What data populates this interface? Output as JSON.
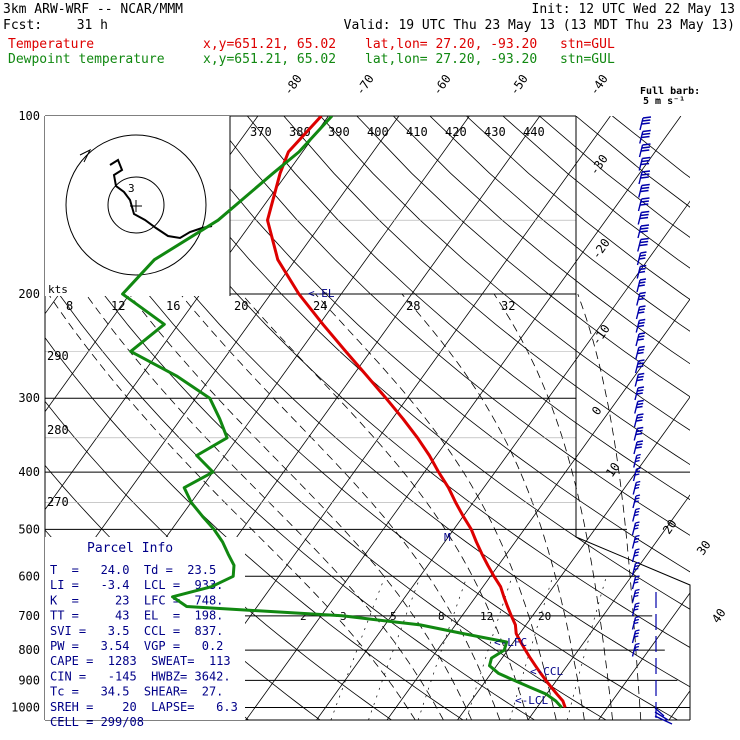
{
  "header": {
    "model_line": "3km ARW-WRF -- NCAR/MMM",
    "init_line": "Init: 12 UTC Wed 22 May 13",
    "fcst_label": "Fcst:",
    "fcst_value": "31 h",
    "valid_line": "Valid: 19 UTC Thu 23 May 13 (13 MDT Thu 23 May 13)",
    "temperature_label": "Temperature",
    "dewpoint_label": "Dewpoint temperature",
    "xy_line": "x,y=651.21, 65.02",
    "latlon_line": "lat,lon= 27.20, -93.20",
    "station_line": "stn=GUL"
  },
  "barb_legend": {
    "line1": "Full barb:",
    "line2": "5 m s⁻¹"
  },
  "hodograph": {
    "kts_label": "kts",
    "ring_labels": [
      "3"
    ],
    "tick_labels": [
      "8",
      "12",
      "16",
      "20",
      "24",
      "28",
      "32"
    ],
    "el_marker": "<-EL"
  },
  "parcel_info": {
    "title": "Parcel Info",
    "rows": [
      "T  =   24.0  Td =  23.5",
      "LI =   -3.4  LCL =  933.",
      "K  =     23  LFC =  748.",
      "TT =     43  EL  =  198.",
      "SVI =   3.5  CCL =  837.",
      "PW =   3.54  VGP =   0.2",
      "CAPE =  1283  SWEAT=  113",
      "CIN =   -145  HWBZ= 3642.",
      "Tc =   34.5  SHEAR=  27.",
      "SREH =    20  LAPSE=   6.3",
      "CELL = 299/08"
    ]
  },
  "markers": {
    "lfc": "<-LFC",
    "ccl": "<-CCL",
    "lcl": "<-LCL",
    "m": "M"
  },
  "mixing_labels": [
    "2",
    "3",
    "5",
    "8",
    "12",
    "20"
  ],
  "theta_labels": [
    "370",
    "380",
    "390",
    "400",
    "410",
    "420",
    "430",
    "440"
  ],
  "theta_left_labels": [
    "290",
    "280",
    "270"
  ],
  "colors": {
    "temperature": "#dd0000",
    "dewpoint": "#118811",
    "barbs": "#0000aa",
    "header_text": "#000000"
  },
  "chart_data": {
    "type": "line",
    "title": "",
    "xlabel": "",
    "ylabel": "",
    "y_scale": "log-pressure",
    "pressure_ticks_hPa": [
      100,
      200,
      300,
      400,
      500,
      600,
      700,
      800,
      900,
      1000
    ],
    "isotherm_labels_C": [
      -80,
      -70,
      -60,
      -50,
      -40,
      -30,
      -20,
      -10,
      0,
      10,
      20,
      30,
      40
    ],
    "series": [
      {
        "name": "Temperature",
        "pressure_hPa": [
          1000,
          975,
          950,
          925,
          900,
          875,
          850,
          825,
          800,
          775,
          750,
          725,
          700,
          675,
          650,
          625,
          600,
          575,
          550,
          525,
          500,
          475,
          450,
          425,
          400,
          375,
          350,
          325,
          300,
          275,
          250,
          225,
          200,
          175,
          150,
          125,
          115,
          100
        ],
        "temperature_C": [
          24.0,
          23.0,
          21.5,
          20.0,
          18.5,
          17.0,
          15.5,
          14.0,
          12.5,
          11.0,
          9.5,
          8.5,
          7.0,
          5.5,
          4.0,
          2.5,
          0.5,
          -1.5,
          -3.5,
          -5.5,
          -7.5,
          -10.0,
          -12.5,
          -15.0,
          -18.0,
          -21.0,
          -24.5,
          -28.5,
          -33.0,
          -38.0,
          -43.5,
          -49.5,
          -56.0,
          -62.5,
          -68.0,
          -71.0,
          -72.0,
          -71.0
        ]
      },
      {
        "name": "Dewpoint temperature",
        "pressure_hPa": [
          1000,
          975,
          950,
          925,
          900,
          875,
          850,
          825,
          800,
          775,
          750,
          725,
          700,
          675,
          650,
          625,
          600,
          575,
          550,
          525,
          500,
          475,
          450,
          425,
          400,
          375,
          350,
          325,
          300,
          275,
          250,
          225,
          200,
          175,
          150,
          125,
          115,
          100
        ],
        "temperature_C": [
          23.5,
          22.0,
          20.0,
          17.0,
          14.0,
          11.0,
          9.0,
          8.5,
          9.5,
          9.0,
          2.0,
          -5.0,
          -17.0,
          -40.0,
          -43.0,
          -38.5,
          -36.5,
          -37.5,
          -39.5,
          -41.5,
          -44.0,
          -47.0,
          -50.0,
          -52.5,
          -50.0,
          -54.0,
          -51.5,
          -54.5,
          -58.0,
          -65.0,
          -74.0,
          -72.0,
          -81.0,
          -80.0,
          -75.0,
          -72.0,
          -70.5,
          -69.5
        ]
      }
    ]
  }
}
